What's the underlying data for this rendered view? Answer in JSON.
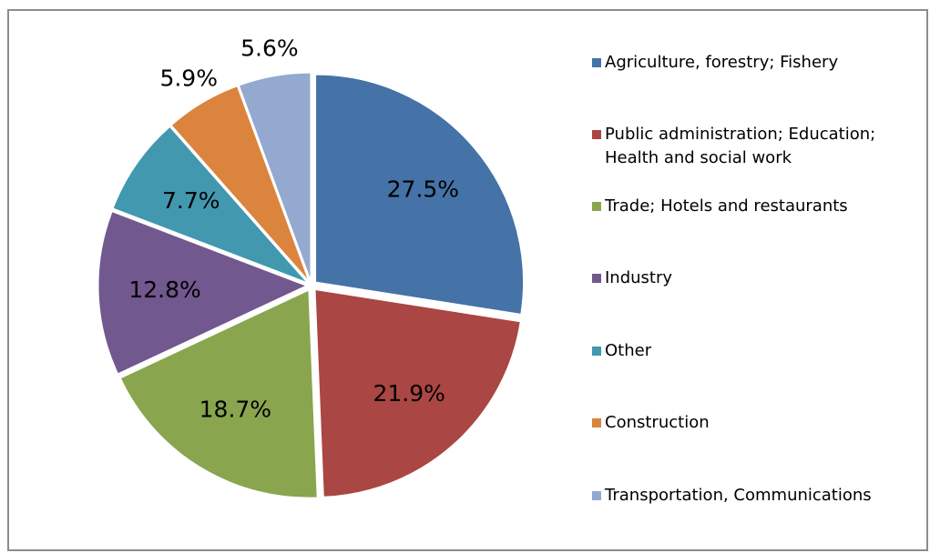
{
  "chart_data": {
    "type": "pie",
    "categories": [
      "Agriculture, forestry; Fishery",
      "Public administration; Education; Health and social work",
      "Trade; Hotels and restaurants",
      "Industry",
      "Other",
      "Construction",
      "Transportation, Communications"
    ],
    "values": [
      27.5,
      21.9,
      18.7,
      12.8,
      7.7,
      5.9,
      5.6
    ],
    "value_labels": [
      "27.5%",
      "21.9%",
      "18.7%",
      "12.8%",
      "7.7%",
      "5.9%",
      "5.6%"
    ],
    "colors": [
      "#4572a7",
      "#aa4643",
      "#89a54e",
      "#71588f",
      "#4198af",
      "#db843d",
      "#93a9cf"
    ],
    "legend": "right"
  }
}
